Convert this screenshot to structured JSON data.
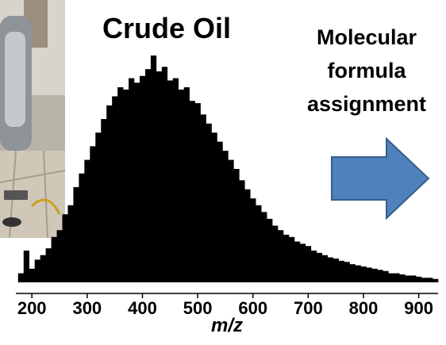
{
  "chart_data": {
    "type": "spectrum",
    "title": "Crude Oil",
    "x_label": "m/z",
    "color": "#000000",
    "x": [
      180,
      190,
      200,
      210,
      220,
      230,
      240,
      250,
      260,
      270,
      280,
      290,
      300,
      310,
      320,
      330,
      340,
      350,
      360,
      370,
      380,
      390,
      400,
      410,
      420,
      430,
      440,
      450,
      460,
      470,
      480,
      490,
      500,
      510,
      520,
      530,
      540,
      550,
      560,
      570,
      580,
      590,
      600,
      610,
      620,
      630,
      640,
      650,
      660,
      670,
      680,
      690,
      700,
      710,
      720,
      730,
      740,
      750,
      760,
      770,
      780,
      790,
      800,
      810,
      820,
      830,
      840,
      850,
      860,
      870,
      880,
      890,
      900,
      910,
      920,
      930
    ],
    "values": [
      4,
      14,
      6,
      10,
      12,
      15,
      20,
      23,
      30,
      34,
      42,
      48,
      54,
      60,
      66,
      72,
      78,
      82,
      86,
      85,
      90,
      88,
      91,
      94,
      100,
      93,
      95,
      89,
      90,
      85,
      86,
      80,
      79,
      74,
      70,
      66,
      62,
      58,
      54,
      50,
      45,
      41,
      37,
      34,
      31,
      28,
      25,
      23,
      21,
      20,
      18,
      17,
      16,
      14,
      13,
      12,
      11,
      10.5,
      9.5,
      9,
      8,
      7.5,
      7,
      6.5,
      6,
      5.5,
      5,
      4,
      4,
      3.5,
      3,
      3,
      2.5,
      2,
      2,
      1.5
    ],
    "xlim": [
      171,
      935
    ],
    "xticks": [
      200,
      300,
      400,
      500,
      600,
      700,
      800,
      900
    ],
    "ylim": [
      0,
      100
    ]
  },
  "annotation": {
    "lines": [
      "Molecular",
      "formula",
      "assignment"
    ]
  }
}
